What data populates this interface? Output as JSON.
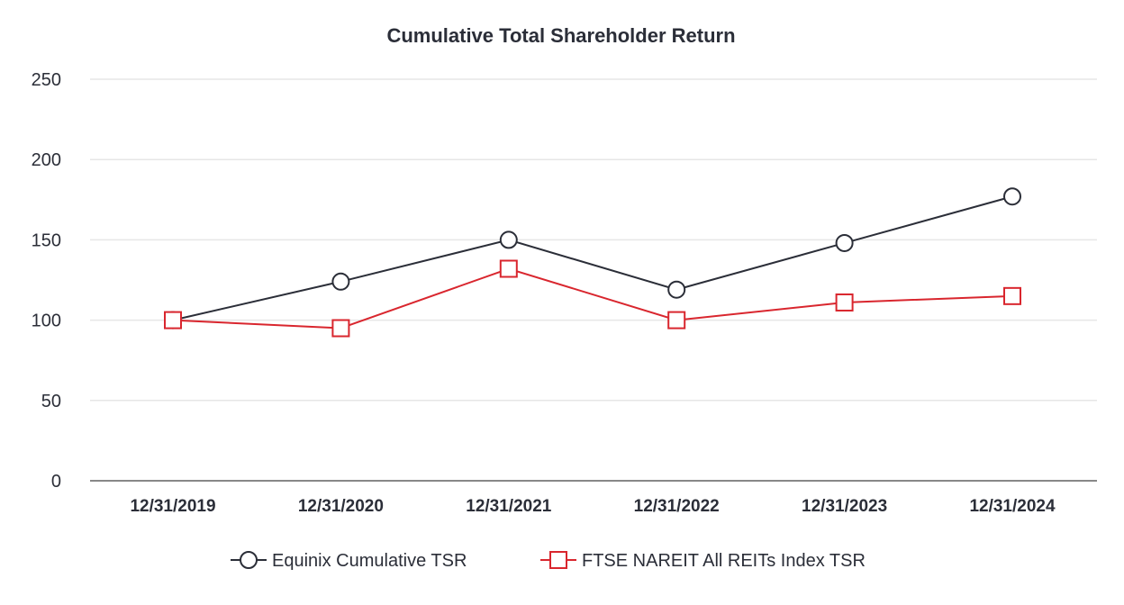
{
  "chart_data": {
    "type": "line",
    "title": "Cumulative Total Shareholder Return",
    "xlabel": "",
    "ylabel": "",
    "categories": [
      "12/31/2019",
      "12/31/2020",
      "12/31/2021",
      "12/31/2022",
      "12/31/2023",
      "12/31/2024"
    ],
    "ylim": [
      0,
      250
    ],
    "yticks": [
      0,
      50,
      100,
      150,
      200,
      250
    ],
    "grid": true,
    "legend_position": "bottom-center",
    "series": [
      {
        "name": "Equinix Cumulative TSR",
        "values": [
          100,
          124,
          150,
          119,
          148,
          177
        ],
        "marker": "circle",
        "color": "#2b2e38"
      },
      {
        "name": "FTSE NAREIT All REITs Index TSR",
        "values": [
          100,
          95,
          132,
          100,
          111,
          115
        ],
        "marker": "square",
        "color": "#d9262e"
      }
    ]
  }
}
